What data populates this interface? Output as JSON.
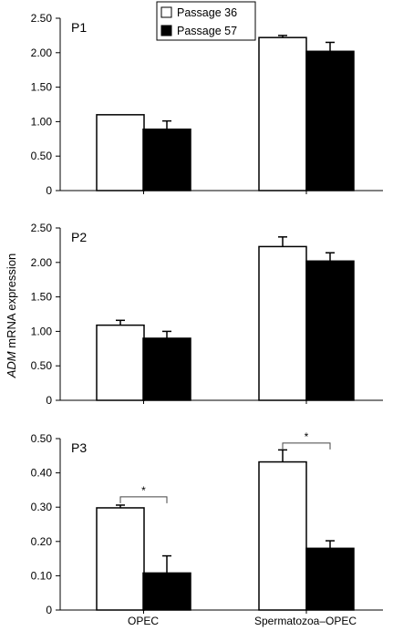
{
  "legend": {
    "entries": [
      {
        "label": "Passage 36",
        "fill": "#ffffff"
      },
      {
        "label": "Passage 57",
        "fill": "#000000"
      }
    ]
  },
  "ylabel": {
    "italic": "ADM",
    "rest": " mRNA expression"
  },
  "chart_data": [
    {
      "type": "bar",
      "panel": "P1",
      "categories": [
        "OPEC",
        "Spermatozoa–OPEC"
      ],
      "series": [
        {
          "name": "Passage 36",
          "values": [
            1.1,
            2.22
          ],
          "errors": [
            0.0,
            0.03
          ]
        },
        {
          "name": "Passage 57",
          "values": [
            0.89,
            2.02
          ],
          "errors": [
            0.12,
            0.13
          ]
        }
      ],
      "ylim": [
        0,
        2.5
      ],
      "yticks": [
        "0",
        "0.50",
        "1.00",
        "1.50",
        "2.00",
        "2.50"
      ],
      "significance": []
    },
    {
      "type": "bar",
      "panel": "P2",
      "categories": [
        "OPEC",
        "Spermatozoa–OPEC"
      ],
      "series": [
        {
          "name": "Passage 36",
          "values": [
            1.09,
            2.23
          ],
          "errors": [
            0.07,
            0.14
          ]
        },
        {
          "name": "Passage 57",
          "values": [
            0.9,
            2.02
          ],
          "errors": [
            0.1,
            0.12
          ]
        }
      ],
      "ylim": [
        0,
        2.5
      ],
      "yticks": [
        "0",
        "0.50",
        "1.00",
        "1.50",
        "2.00",
        "2.50"
      ],
      "significance": []
    },
    {
      "type": "bar",
      "panel": "P3",
      "categories": [
        "OPEC",
        "Spermatozoa–OPEC"
      ],
      "series": [
        {
          "name": "Passage 36",
          "values": [
            0.298,
            0.432
          ],
          "errors": [
            0.008,
            0.035
          ]
        },
        {
          "name": "Passage 57",
          "values": [
            0.108,
            0.18
          ],
          "errors": [
            0.05,
            0.022
          ]
        }
      ],
      "ylim": [
        0,
        0.5
      ],
      "yticks": [
        "0",
        "0.10",
        "0.20",
        "0.30",
        "0.40",
        "0.50"
      ],
      "significance": [
        {
          "category": 0,
          "label": "*",
          "y": 0.33
        },
        {
          "category": 1,
          "label": "*",
          "y": 0.487
        }
      ]
    }
  ]
}
